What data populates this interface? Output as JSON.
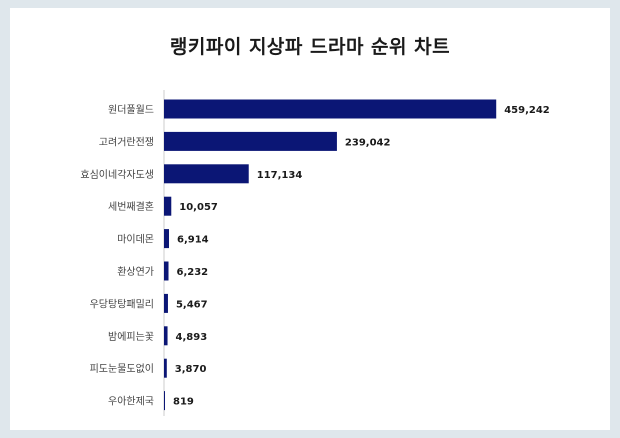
{
  "chart_data": {
    "type": "bar",
    "orientation": "horizontal",
    "title": "랭키파이 지상파 드라마 순위 차트",
    "categories": [
      "원더풀월드",
      "고려거란전쟁",
      "효심이네각자도생",
      "세번째결혼",
      "마이데몬",
      "환상연가",
      "우당탕탕패밀리",
      "밤에피는꽃",
      "피도눈물도없이",
      "우아한제국"
    ],
    "values": [
      459242,
      239042,
      117134,
      10057,
      6914,
      6232,
      5467,
      4893,
      3870,
      819
    ],
    "value_labels": [
      "459,242",
      "239,042",
      "117,134",
      "10,057",
      "6,914",
      "6,232",
      "5,467",
      "4,893",
      "3,870",
      "819"
    ],
    "xlabel": "",
    "ylabel": "",
    "xlim": [
      0,
      470000
    ],
    "grid": false,
    "colors": {
      "bar": "#0b1675",
      "axis": "#cccccc",
      "background": "#dfe7ec"
    }
  }
}
